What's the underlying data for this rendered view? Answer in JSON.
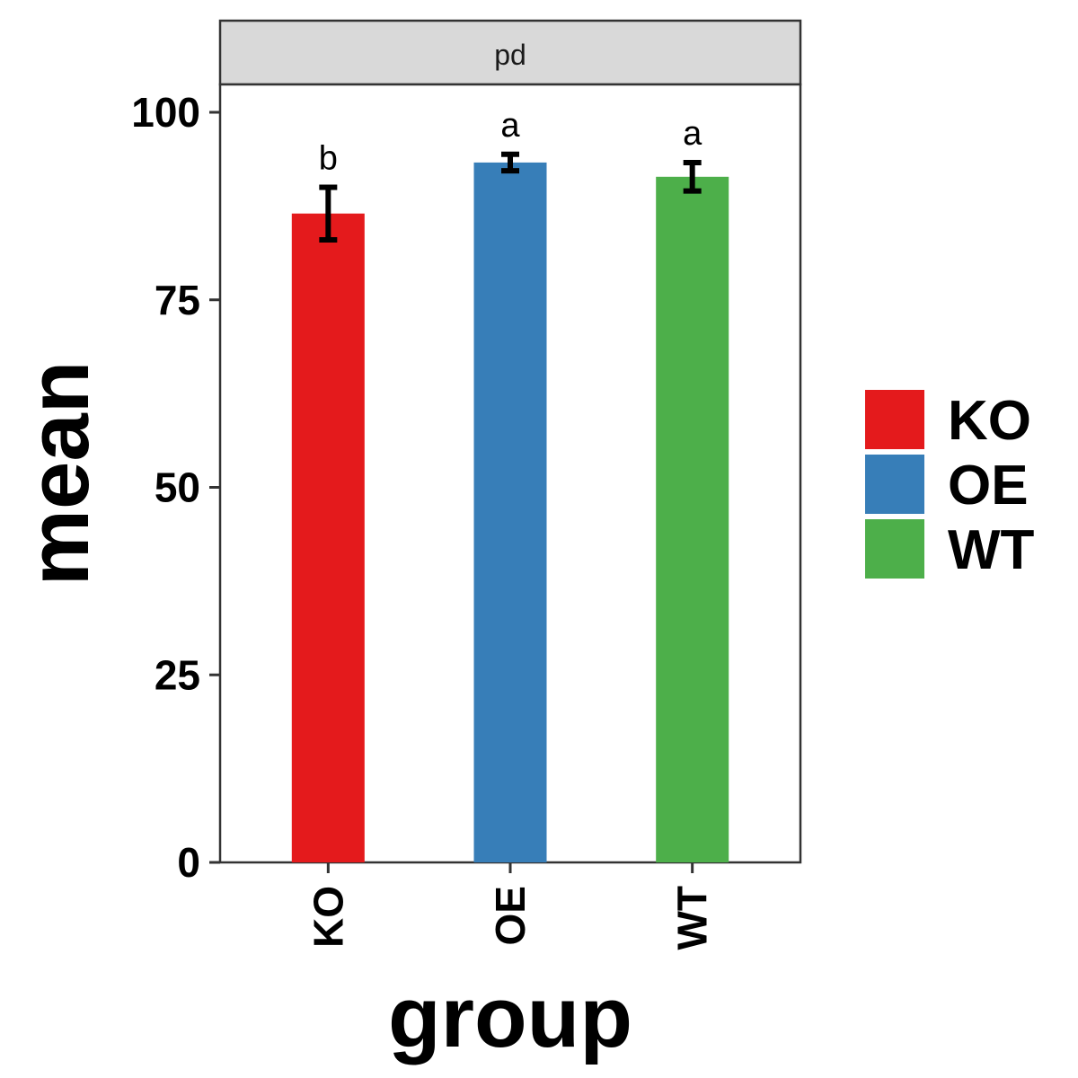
{
  "chart_data": {
    "type": "bar",
    "facet": "pd",
    "categories": [
      "KO",
      "OE",
      "WT"
    ],
    "values": [
      86.5,
      93.3,
      91.4
    ],
    "errors": [
      3.5,
      1.1,
      1.9
    ],
    "significance_labels": [
      "b",
      "a",
      "a"
    ],
    "colors": [
      "#E41A1C",
      "#377EB8",
      "#4DAF4A"
    ],
    "xlabel": "group",
    "ylabel": "mean",
    "ylim": [
      0,
      100
    ],
    "yticks": [
      0,
      25,
      50,
      75,
      100
    ],
    "legend": {
      "placement": "right",
      "entries": [
        {
          "label": "KO",
          "color": "#E41A1C"
        },
        {
          "label": "OE",
          "color": "#377EB8"
        },
        {
          "label": "WT",
          "color": "#4DAF4A"
        }
      ]
    },
    "grid": false
  }
}
